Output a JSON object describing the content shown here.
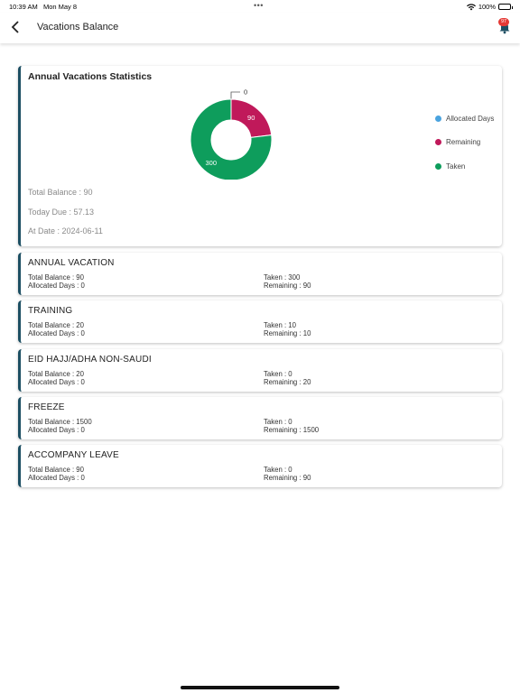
{
  "status": {
    "time": "10:39 AM",
    "date": "Mon May 8",
    "battery": "100%"
  },
  "header": {
    "title": "Vacations Balance",
    "notifications_count": "97"
  },
  "stats": {
    "title": "Annual Vacations Statistics",
    "total_balance": "Total Balance : 90",
    "today_due": "Today Due : 57.13",
    "at_date": "At Date : 2024-06-11",
    "legend": [
      {
        "label": "Allocated Days",
        "color": "#4aa3df"
      },
      {
        "label": "Remaining",
        "color": "#c0195a"
      },
      {
        "label": "Taken",
        "color": "#0e9d5c"
      }
    ]
  },
  "chart_data": {
    "type": "pie",
    "categories": [
      "Allocated Days",
      "Remaining",
      "Taken"
    ],
    "values": [
      0,
      90,
      300
    ],
    "colors": [
      "#4aa3df",
      "#c0195a",
      "#0e9d5c"
    ],
    "labels": [
      "0",
      "90",
      "300"
    ],
    "title": "Annual Vacations Statistics",
    "legend": "right"
  },
  "vacations": [
    {
      "name": "ANNUAL VACATION",
      "total": "Total Balance : 90",
      "allocated": "Allocated Days : 0",
      "taken": "Taken : 300",
      "remaining": "Remaining : 90"
    },
    {
      "name": "TRAINING",
      "total": "Total Balance : 20",
      "allocated": "Allocated Days : 0",
      "taken": "Taken : 10",
      "remaining": "Remaining : 10"
    },
    {
      "name": "EID HAJJ/ADHA NON-SAUDI",
      "total": "Total Balance : 20",
      "allocated": "Allocated Days : 0",
      "taken": "Taken : 0",
      "remaining": "Remaining : 20"
    },
    {
      "name": "FREEZE",
      "total": "Total Balance : 1500",
      "allocated": "Allocated Days : 0",
      "taken": "Taken : 0",
      "remaining": "Remaining : 1500"
    },
    {
      "name": "ACCOMPANY LEAVE",
      "total": "Total Balance : 90",
      "allocated": "Allocated Days : 0",
      "taken": "Taken : 0",
      "remaining": "Remaining : 90"
    }
  ]
}
